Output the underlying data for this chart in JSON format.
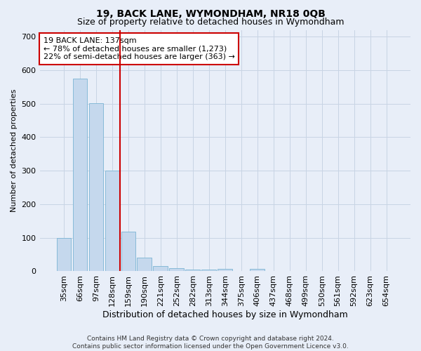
{
  "title1": "19, BACK LANE, WYMONDHAM, NR18 0QB",
  "title2": "Size of property relative to detached houses in Wymondham",
  "xlabel": "Distribution of detached houses by size in Wymondham",
  "ylabel": "Number of detached properties",
  "categories": [
    "35sqm",
    "66sqm",
    "97sqm",
    "128sqm",
    "159sqm",
    "190sqm",
    "221sqm",
    "252sqm",
    "282sqm",
    "313sqm",
    "344sqm",
    "375sqm",
    "406sqm",
    "437sqm",
    "468sqm",
    "499sqm",
    "530sqm",
    "561sqm",
    "592sqm",
    "623sqm",
    "654sqm"
  ],
  "values": [
    100,
    575,
    502,
    300,
    118,
    40,
    15,
    10,
    5,
    5,
    8,
    0,
    8,
    0,
    0,
    0,
    0,
    0,
    0,
    0,
    0
  ],
  "bar_color": "#c5d8ed",
  "bar_edge_color": "#7ab4d4",
  "redline_x": 3.5,
  "annotation_text": "19 BACK LANE: 137sqm\n← 78% of detached houses are smaller (1,273)\n22% of semi-detached houses are larger (363) →",
  "annotation_box_color": "#ffffff",
  "annotation_box_edge_color": "#cc0000",
  "redline_color": "#cc0000",
  "ylim": [
    0,
    720
  ],
  "yticks": [
    0,
    100,
    200,
    300,
    400,
    500,
    600,
    700
  ],
  "grid_color": "#c8d4e4",
  "bg_color": "#e8eef8",
  "footnote": "Contains HM Land Registry data © Crown copyright and database right 2024.\nContains public sector information licensed under the Open Government Licence v3.0.",
  "title1_fontsize": 10,
  "title2_fontsize": 9,
  "xlabel_fontsize": 9,
  "ylabel_fontsize": 8,
  "tick_fontsize": 8,
  "annot_fontsize": 8,
  "footnote_fontsize": 6.5
}
